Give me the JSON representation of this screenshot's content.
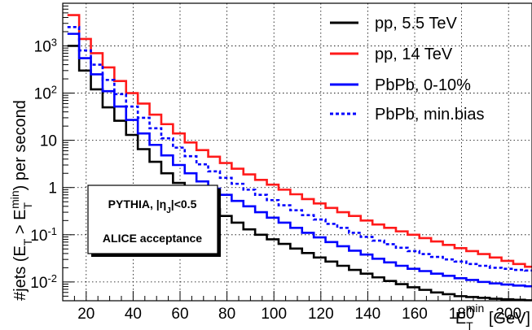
{
  "chart_data": {
    "type": "line",
    "step": true,
    "log_y": true,
    "xlim": [
      10,
      210
    ],
    "ylim": [
      0.004,
      8000
    ],
    "x_ticks": [
      20,
      40,
      60,
      80,
      100,
      120,
      140,
      160,
      180,
      200
    ],
    "y_ticks": [
      {
        "value": 0.01,
        "label": "10",
        "exp": "-2"
      },
      {
        "value": 0.1,
        "label": "10",
        "exp": "-1"
      },
      {
        "value": 1,
        "label": "1",
        "exp": ""
      },
      {
        "value": 10,
        "label": "10",
        "exp": ""
      },
      {
        "value": 100,
        "label": "10",
        "exp": "2"
      },
      {
        "value": 1000,
        "label": "10",
        "exp": "3"
      }
    ],
    "grid": true,
    "xlabel": {
      "main": "E",
      "sub": "T",
      "sup": "min",
      "unit": " [GeV]"
    },
    "ylabel": {
      "p1": "#jets (E",
      "sub1": "T",
      "p2": " > E",
      "sub2": "T",
      "sup2": "min",
      "p3": ") per second"
    },
    "bin_edges": [
      12,
      17,
      22,
      27,
      32,
      37,
      42,
      47,
      52,
      57,
      62,
      67,
      72,
      77,
      82,
      87,
      92,
      97,
      102,
      107,
      112,
      117,
      122,
      127,
      132,
      137,
      142,
      147,
      152,
      157,
      162,
      167,
      172,
      177,
      182,
      187,
      192,
      197,
      202,
      207,
      210
    ],
    "series": [
      {
        "name": "pp, 5.5 TeV",
        "color": "#000000",
        "dash": false,
        "values": [
          1000,
          300,
          120,
          50,
          26,
          13,
          6.5,
          3.5,
          2.0,
          1.25,
          0.8,
          0.5,
          0.35,
          0.25,
          0.18,
          0.13,
          0.1,
          0.08,
          0.064,
          0.051,
          0.041,
          0.033,
          0.027,
          0.022,
          0.018,
          0.015,
          0.0125,
          0.0105,
          0.009,
          0.0077,
          0.0068,
          0.006,
          0.0055,
          0.005,
          0.0048,
          0.0046,
          0.0044,
          0.0043,
          0.0042,
          0.0041
        ]
      },
      {
        "name": "pp, 14 TeV",
        "color": "#ff1a1a",
        "dash": false,
        "values": [
          4500,
          1400,
          700,
          350,
          180,
          100,
          60,
          35,
          22,
          14,
          9,
          6.2,
          4.5,
          3.3,
          2.5,
          1.9,
          1.45,
          1.15,
          0.9,
          0.72,
          0.57,
          0.46,
          0.37,
          0.3,
          0.25,
          0.2,
          0.165,
          0.14,
          0.118,
          0.1,
          0.085,
          0.072,
          0.061,
          0.052,
          0.045,
          0.039,
          0.033,
          0.028,
          0.024,
          0.021
        ]
      },
      {
        "name": "PbPb, 0-10%",
        "color": "#0000ff",
        "dash": false,
        "values": [
          1800,
          550,
          250,
          110,
          52,
          27,
          14,
          8,
          4.8,
          3.0,
          2.0,
          1.35,
          0.95,
          0.7,
          0.52,
          0.4,
          0.3,
          0.23,
          0.18,
          0.14,
          0.11,
          0.088,
          0.07,
          0.057,
          0.046,
          0.038,
          0.031,
          0.026,
          0.022,
          0.019,
          0.017,
          0.015,
          0.0135,
          0.012,
          0.011,
          0.01,
          0.0093,
          0.0088,
          0.0084,
          0.0081
        ]
      },
      {
        "name": "PbPb, min.bias",
        "color": "#0000ff",
        "dash": true,
        "values": [
          2500,
          800,
          400,
          190,
          95,
          52,
          30,
          18,
          11,
          7.0,
          4.6,
          3.1,
          2.2,
          1.6,
          1.2,
          0.9,
          0.7,
          0.54,
          0.42,
          0.33,
          0.26,
          0.21,
          0.17,
          0.14,
          0.11,
          0.09,
          0.075,
          0.063,
          0.053,
          0.045,
          0.039,
          0.034,
          0.03,
          0.027,
          0.024,
          0.022,
          0.02,
          0.019,
          0.018,
          0.0175
        ]
      }
    ],
    "legend_position": "top-right",
    "annotation": {
      "line1": "PYTHIA, |η",
      "line1_sub": "J",
      "line1_tail": "|<0.5",
      "line2": "ALICE acceptance"
    }
  }
}
